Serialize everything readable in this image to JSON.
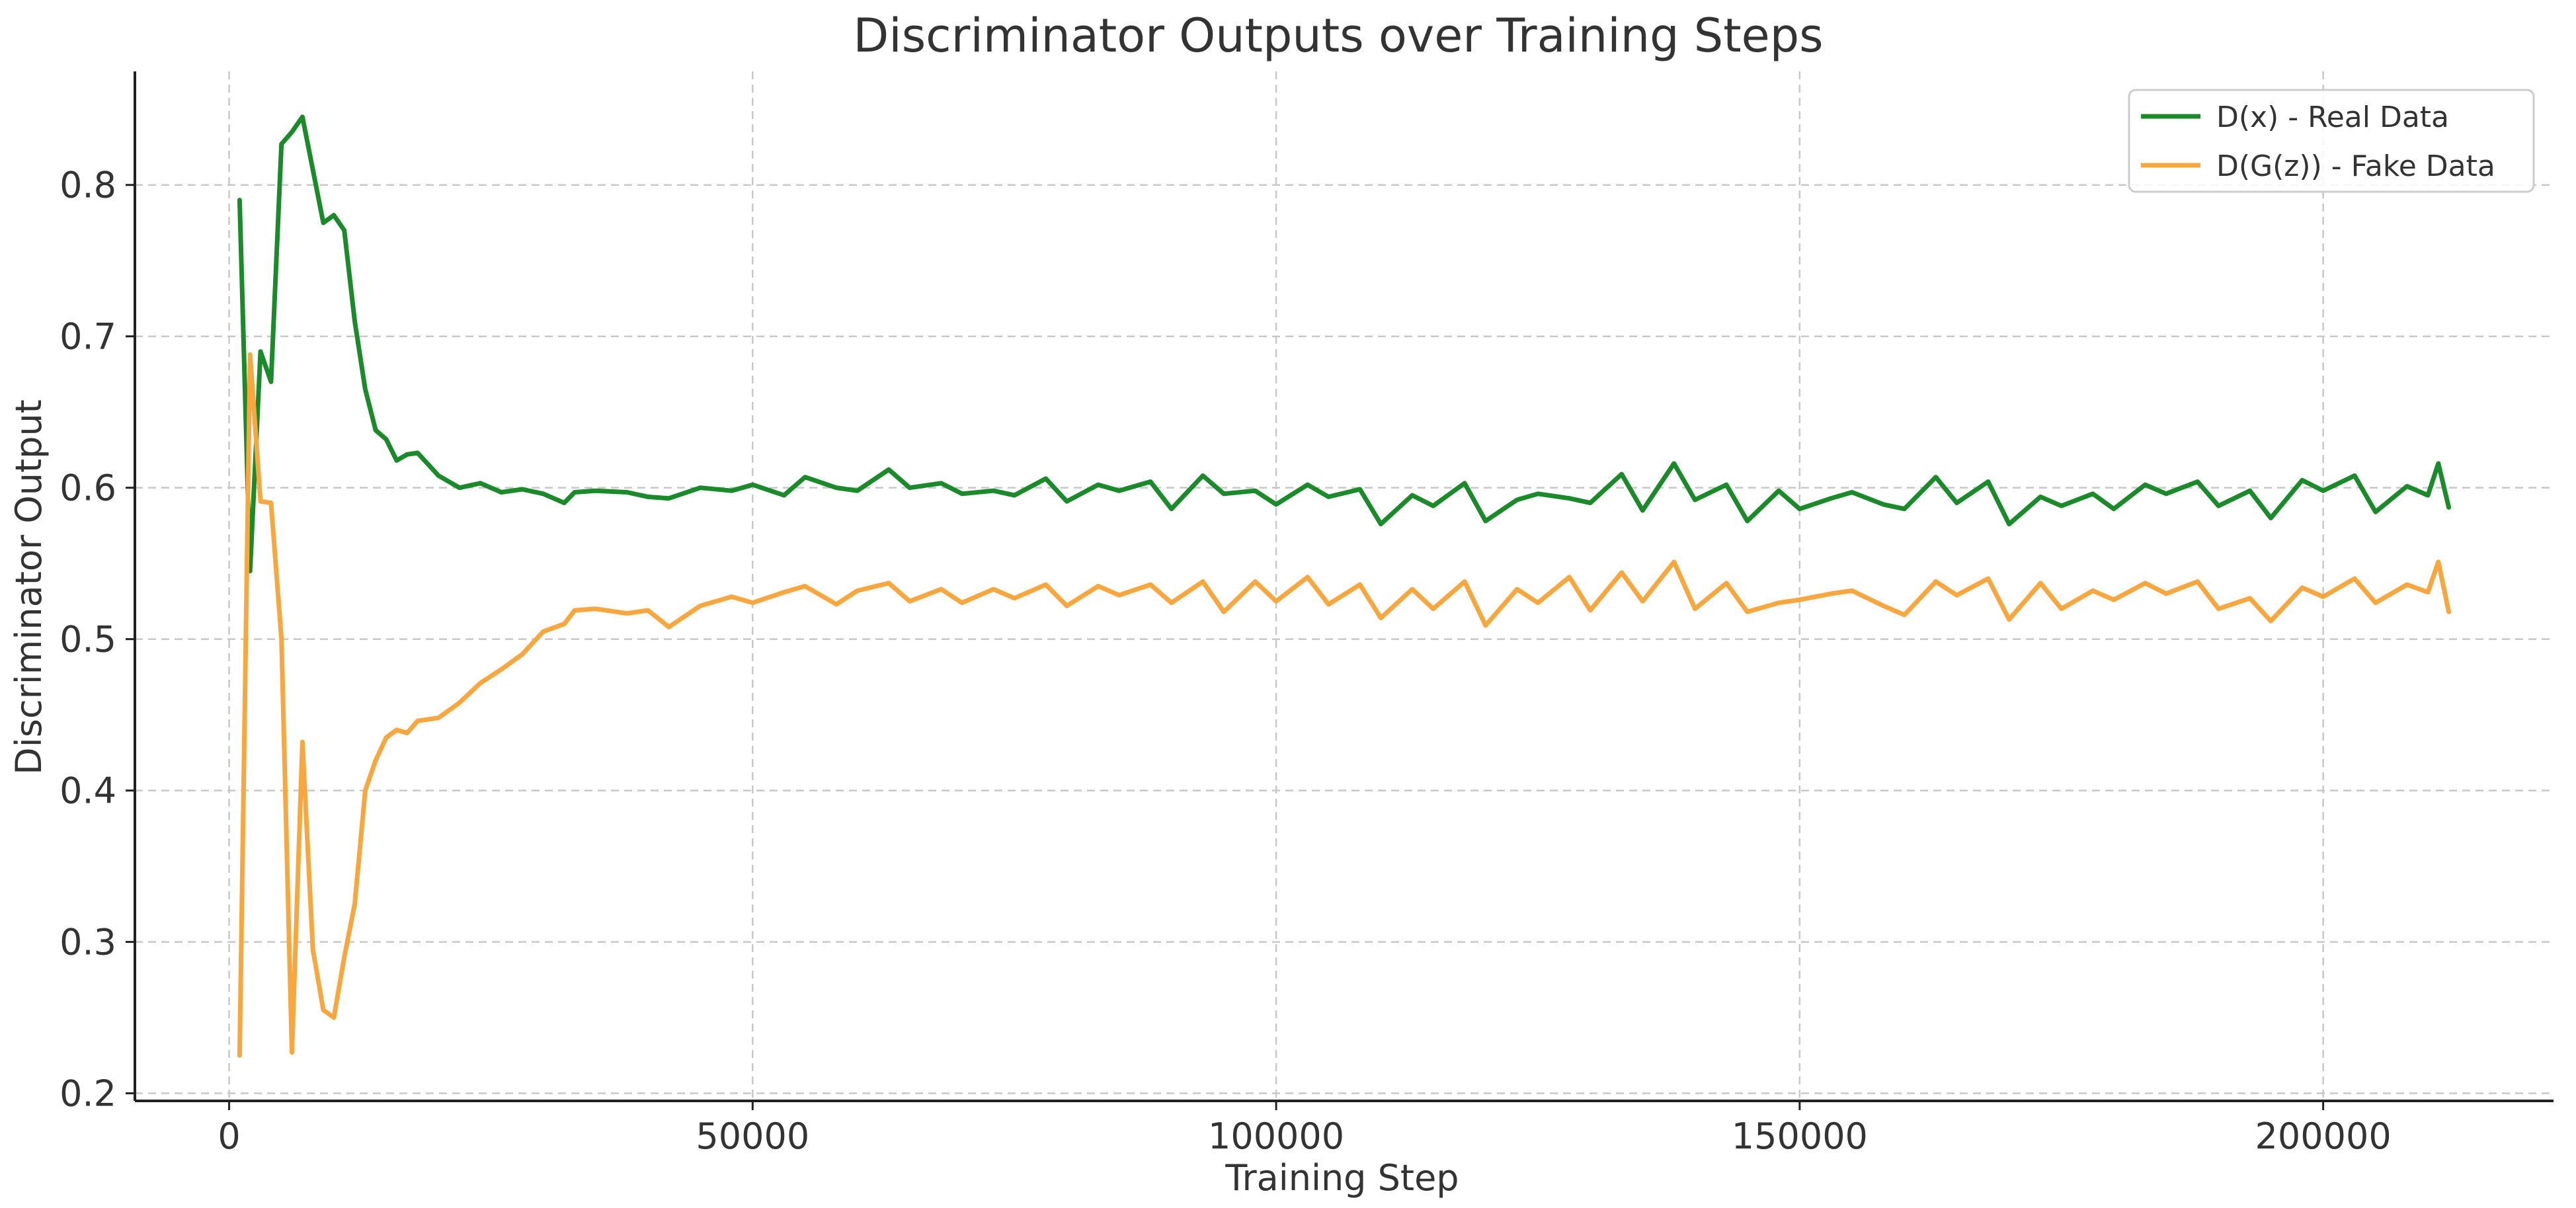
{
  "chart_data": {
    "type": "line",
    "title": "Discriminator Outputs over Training Steps",
    "xlabel": "Training Step",
    "ylabel": "Discriminator Output",
    "xlim": [
      -9000,
      222000
    ],
    "ylim": [
      0.195,
      0.875
    ],
    "xticks": [
      0,
      50000,
      100000,
      150000,
      200000
    ],
    "yticks": [
      0.2,
      0.3,
      0.4,
      0.5,
      0.6,
      0.7,
      0.8
    ],
    "xtick_labels": [
      "0",
      "50000",
      "100000",
      "150000",
      "200000"
    ],
    "ytick_labels": [
      "0.2",
      "0.3",
      "0.4",
      "0.5",
      "0.6",
      "0.7",
      "0.8"
    ],
    "grid": true,
    "legend_position": "top-right",
    "x": [
      1000,
      2000,
      3000,
      4000,
      5000,
      6000,
      7000,
      8000,
      9000,
      10000,
      11000,
      12000,
      13000,
      14000,
      15000,
      16000,
      17000,
      18000,
      20000,
      22000,
      24000,
      26000,
      28000,
      30000,
      32000,
      33000,
      35000,
      38000,
      40000,
      42000,
      45000,
      48000,
      50000,
      53000,
      55000,
      58000,
      60000,
      63000,
      65000,
      68000,
      70000,
      73000,
      75000,
      78000,
      80000,
      83000,
      85000,
      88000,
      90000,
      93000,
      95000,
      98000,
      100000,
      103000,
      105000,
      108000,
      110000,
      113000,
      115000,
      118000,
      120000,
      123000,
      125000,
      128000,
      130000,
      133000,
      135000,
      138000,
      140000,
      143000,
      145000,
      148000,
      150000,
      153000,
      155000,
      158000,
      160000,
      163000,
      165000,
      168000,
      170000,
      173000,
      175000,
      178000,
      180000,
      183000,
      185000,
      188000,
      190000,
      193000,
      195000,
      198000,
      200000,
      203000,
      205000,
      208000,
      210000,
      211000,
      212000
    ],
    "series": [
      {
        "name": "D(x) - Real Data",
        "color": "#1a8a2a",
        "values": [
          0.79,
          0.545,
          0.69,
          0.67,
          0.827,
          0.835,
          0.845,
          0.81,
          0.775,
          0.78,
          0.77,
          0.71,
          0.665,
          0.638,
          0.632,
          0.618,
          0.622,
          0.623,
          0.608,
          0.6,
          0.603,
          0.597,
          0.599,
          0.596,
          0.59,
          0.597,
          0.598,
          0.597,
          0.594,
          0.593,
          0.6,
          0.598,
          0.602,
          0.595,
          0.607,
          0.6,
          0.598,
          0.612,
          0.6,
          0.603,
          0.596,
          0.598,
          0.595,
          0.606,
          0.591,
          0.602,
          0.598,
          0.604,
          0.586,
          0.608,
          0.596,
          0.598,
          0.589,
          0.602,
          0.594,
          0.599,
          0.576,
          0.595,
          0.588,
          0.603,
          0.578,
          0.592,
          0.596,
          0.593,
          0.59,
          0.609,
          0.585,
          0.616,
          0.592,
          0.602,
          0.578,
          0.598,
          0.586,
          0.593,
          0.597,
          0.589,
          0.586,
          0.607,
          0.59,
          0.604,
          0.576,
          0.594,
          0.588,
          0.596,
          0.586,
          0.602,
          0.596,
          0.604,
          0.588,
          0.598,
          0.58,
          0.605,
          0.598,
          0.608,
          0.584,
          0.601,
          0.595,
          0.616,
          0.587
        ]
      },
      {
        "name": "D(G(z)) - Fake Data",
        "color": "#f8a73f",
        "values": [
          0.225,
          0.688,
          0.591,
          0.59,
          0.5,
          0.227,
          0.432,
          0.295,
          0.255,
          0.25,
          0.29,
          0.325,
          0.4,
          0.42,
          0.435,
          0.44,
          0.438,
          0.446,
          0.448,
          0.458,
          0.471,
          0.48,
          0.49,
          0.505,
          0.51,
          0.519,
          0.52,
          0.517,
          0.519,
          0.508,
          0.522,
          0.528,
          0.524,
          0.531,
          0.535,
          0.523,
          0.532,
          0.537,
          0.525,
          0.533,
          0.524,
          0.533,
          0.527,
          0.536,
          0.522,
          0.535,
          0.529,
          0.536,
          0.524,
          0.538,
          0.518,
          0.538,
          0.525,
          0.541,
          0.523,
          0.536,
          0.514,
          0.533,
          0.52,
          0.538,
          0.509,
          0.533,
          0.524,
          0.541,
          0.519,
          0.544,
          0.525,
          0.551,
          0.52,
          0.537,
          0.518,
          0.524,
          0.526,
          0.53,
          0.532,
          0.522,
          0.516,
          0.538,
          0.529,
          0.54,
          0.513,
          0.537,
          0.52,
          0.532,
          0.526,
          0.537,
          0.53,
          0.538,
          0.52,
          0.527,
          0.512,
          0.534,
          0.528,
          0.54,
          0.524,
          0.536,
          0.531,
          0.551,
          0.518
        ]
      }
    ]
  }
}
